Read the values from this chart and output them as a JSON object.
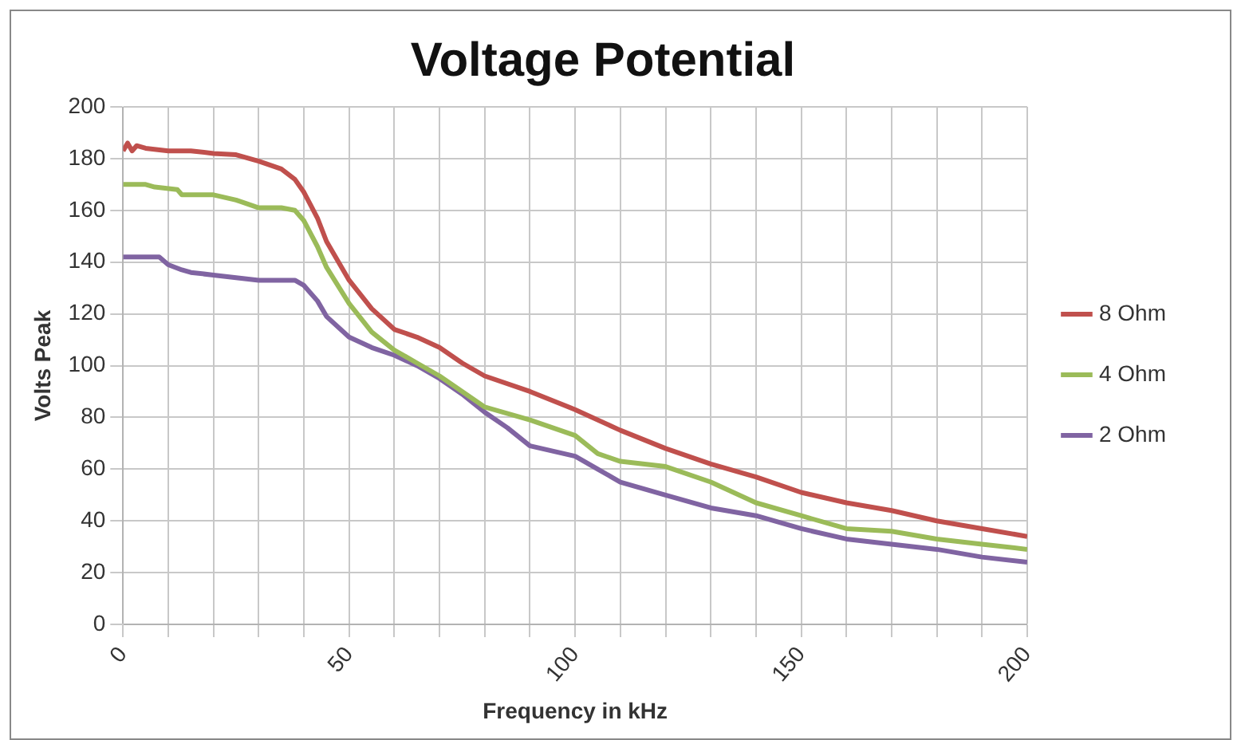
{
  "chart_data": {
    "type": "line",
    "title": "Voltage Potential",
    "xlabel": "Frequency in kHz",
    "ylabel": "Volts Peak",
    "xlim": [
      0,
      200
    ],
    "xticks": [
      0,
      {
        "value": 10,
        "label": null
      },
      {
        "value": 20,
        "label": null
      },
      {
        "value": 30,
        "label": null
      },
      {
        "value": 40,
        "label": null
      },
      50,
      {
        "value": 60,
        "label": null
      },
      {
        "value": 70,
        "label": null
      },
      {
        "value": 80,
        "label": null
      },
      {
        "value": 90,
        "label": null
      },
      100,
      {
        "value": 110,
        "label": null
      },
      {
        "value": 120,
        "label": null
      },
      {
        "value": 130,
        "label": null
      },
      {
        "value": 140,
        "label": null
      },
      150,
      {
        "value": 160,
        "label": null
      },
      {
        "value": 170,
        "label": null
      },
      {
        "value": 180,
        "label": null
      },
      {
        "value": 190,
        "label": null
      },
      200
    ],
    "ylim": [
      0,
      200
    ],
    "yticks": [
      0,
      20,
      40,
      60,
      80,
      100,
      120,
      140,
      160,
      180,
      200
    ],
    "grid": true,
    "legend": "right",
    "marker": "none",
    "line_style": "solid",
    "series": [
      {
        "name": "8 Ohm",
        "color": "#c0504d",
        "x": [
          0,
          1,
          2,
          3,
          5,
          10,
          15,
          20,
          25,
          30,
          35,
          38,
          40,
          43,
          45,
          50,
          55,
          60,
          65,
          70,
          75,
          80,
          90,
          100,
          110,
          120,
          130,
          140,
          150,
          160,
          170,
          180,
          190,
          200
        ],
        "values": [
          183,
          186,
          183,
          185,
          184,
          183,
          183,
          182,
          181.5,
          179,
          176,
          172,
          167,
          157,
          148,
          133,
          122,
          114,
          111,
          107,
          101,
          96,
          90,
          83,
          75,
          68,
          62,
          57,
          51,
          47,
          44,
          40,
          37,
          34
        ]
      },
      {
        "name": "4 Ohm",
        "color": "#9bbb59",
        "x": [
          0,
          5,
          7,
          12,
          13,
          20,
          25,
          30,
          35,
          38,
          40,
          43,
          45,
          50,
          55,
          60,
          65,
          70,
          75,
          80,
          90,
          100,
          105,
          110,
          120,
          130,
          140,
          150,
          160,
          170,
          180,
          190,
          200
        ],
        "values": [
          170,
          170,
          169,
          168,
          166,
          166,
          164,
          161,
          161,
          160,
          156,
          146,
          138,
          124,
          113,
          106,
          101,
          96,
          90,
          84,
          79,
          73,
          66,
          63,
          61,
          55,
          47,
          42,
          37,
          36,
          33,
          31,
          29
        ]
      },
      {
        "name": "2 Ohm",
        "color": "#8064a2",
        "x": [
          0,
          8,
          10,
          13,
          15,
          20,
          25,
          30,
          38,
          40,
          43,
          45,
          50,
          55,
          60,
          65,
          70,
          75,
          80,
          85,
          90,
          100,
          105,
          110,
          120,
          130,
          140,
          150,
          160,
          170,
          180,
          190,
          200
        ],
        "values": [
          142,
          142,
          139,
          137,
          136,
          135,
          134,
          133,
          133,
          131,
          125,
          119,
          111,
          107,
          104,
          100,
          95,
          89,
          82,
          76,
          69,
          65,
          60,
          55,
          50,
          45,
          42,
          37,
          33,
          31,
          29,
          26,
          24
        ]
      }
    ]
  }
}
